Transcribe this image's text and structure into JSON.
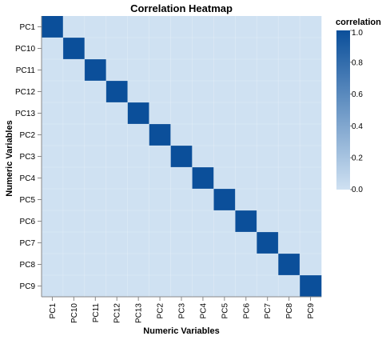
{
  "chart_data": {
    "type": "heatmap",
    "title": "Correlation Heatmap",
    "xlabel": "Numeric Variables",
    "ylabel": "Numeric Variables",
    "x": [
      "PC1",
      "PC10",
      "PC11",
      "PC12",
      "PC13",
      "PC2",
      "PC3",
      "PC4",
      "PC5",
      "PC6",
      "PC7",
      "PC8",
      "PC9"
    ],
    "y": [
      "PC1",
      "PC10",
      "PC11",
      "PC12",
      "PC13",
      "PC2",
      "PC3",
      "PC4",
      "PC5",
      "PC6",
      "PC7",
      "PC8",
      "PC9"
    ],
    "values": [
      [
        1,
        0,
        0,
        0,
        0,
        0,
        0,
        0,
        0,
        0,
        0,
        0,
        0
      ],
      [
        0,
        1,
        0,
        0,
        0,
        0,
        0,
        0,
        0,
        0,
        0,
        0,
        0
      ],
      [
        0,
        0,
        1,
        0,
        0,
        0,
        0,
        0,
        0,
        0,
        0,
        0,
        0
      ],
      [
        0,
        0,
        0,
        1,
        0,
        0,
        0,
        0,
        0,
        0,
        0,
        0,
        0
      ],
      [
        0,
        0,
        0,
        0,
        1,
        0,
        0,
        0,
        0,
        0,
        0,
        0,
        0
      ],
      [
        0,
        0,
        0,
        0,
        0,
        1,
        0,
        0,
        0,
        0,
        0,
        0,
        0
      ],
      [
        0,
        0,
        0,
        0,
        0,
        0,
        1,
        0,
        0,
        0,
        0,
        0,
        0
      ],
      [
        0,
        0,
        0,
        0,
        0,
        0,
        0,
        1,
        0,
        0,
        0,
        0,
        0
      ],
      [
        0,
        0,
        0,
        0,
        0,
        0,
        0,
        0,
        1,
        0,
        0,
        0,
        0
      ],
      [
        0,
        0,
        0,
        0,
        0,
        0,
        0,
        0,
        0,
        1,
        0,
        0,
        0
      ],
      [
        0,
        0,
        0,
        0,
        0,
        0,
        0,
        0,
        0,
        0,
        1,
        0,
        0
      ],
      [
        0,
        0,
        0,
        0,
        0,
        0,
        0,
        0,
        0,
        0,
        0,
        1,
        0
      ],
      [
        0,
        0,
        0,
        0,
        0,
        0,
        0,
        0,
        0,
        0,
        0,
        0,
        1
      ]
    ],
    "legend": {
      "title": "correlation",
      "range": [
        0,
        1
      ],
      "ticks": [
        "0.0",
        "0.2",
        "0.4",
        "0.6",
        "0.8",
        "1.0"
      ],
      "placement": "right"
    },
    "colors": {
      "low": "#cfe1f2",
      "high": "#0b4f9a"
    }
  }
}
